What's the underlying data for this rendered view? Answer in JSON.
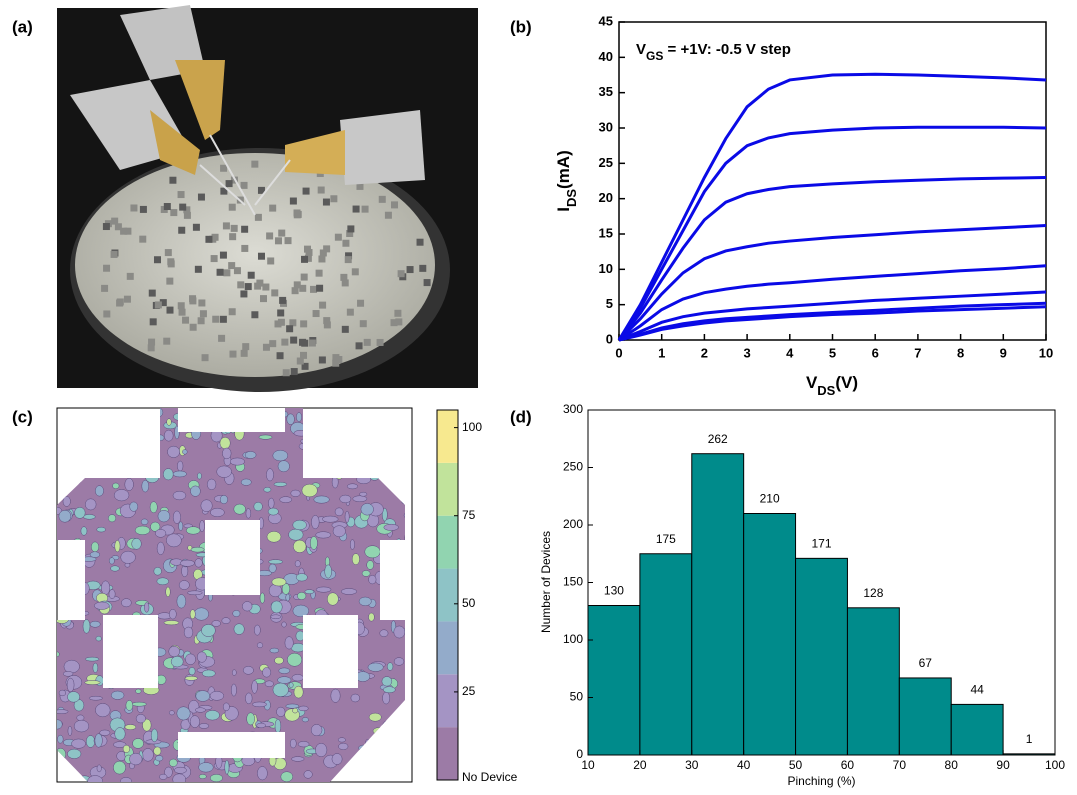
{
  "panel_labels": [
    "(a)",
    "(b)",
    "(c)",
    "(d)"
  ],
  "chart_data": [
    {
      "type": "line",
      "title": {
        "main": "V",
        "sub": "GS",
        "rest": " = +1V: -0.5 V step"
      },
      "x_label": {
        "main": "V",
        "sub": "DS",
        "rest": "(V)"
      },
      "y_label": {
        "main": "I",
        "sub": "DS",
        "rest": "(mA)"
      },
      "x": [
        0,
        0.5,
        1,
        1.5,
        2,
        2.5,
        3,
        3.5,
        4,
        5,
        6,
        7,
        8,
        9,
        10
      ],
      "series": [
        {
          "color": "#0a0ae6",
          "values": [
            0,
            5,
            11,
            17,
            23,
            28.5,
            33,
            35.5,
            36.8,
            37.5,
            37.6,
            37.5,
            37.3,
            37.1,
            36.8
          ]
        },
        {
          "color": "#0a0ae6",
          "values": [
            0,
            4.5,
            10,
            15.5,
            21,
            25,
            27.5,
            28.6,
            29.2,
            29.7,
            30,
            30.1,
            30.1,
            30.1,
            30
          ]
        },
        {
          "color": "#0a0ae6",
          "values": [
            0,
            3.8,
            8.5,
            13,
            17,
            19.5,
            20.7,
            21.3,
            21.7,
            22.1,
            22.4,
            22.6,
            22.8,
            22.9,
            23
          ]
        },
        {
          "color": "#0a0ae6",
          "values": [
            0,
            3,
            6.5,
            9.5,
            11.5,
            12.6,
            13.2,
            13.7,
            14,
            14.5,
            14.9,
            15.3,
            15.6,
            15.9,
            16.2
          ]
        },
        {
          "color": "#0a0ae6",
          "values": [
            0,
            2,
            4.3,
            5.8,
            6.7,
            7.2,
            7.6,
            7.9,
            8.1,
            8.6,
            9,
            9.4,
            9.8,
            10.1,
            10.5
          ]
        },
        {
          "color": "#0a0ae6",
          "values": [
            0,
            1.2,
            2.5,
            3.3,
            3.8,
            4.1,
            4.4,
            4.6,
            4.8,
            5.2,
            5.6,
            5.9,
            6.2,
            6.5,
            6.8
          ]
        },
        {
          "color": "#0a0ae6",
          "values": [
            0,
            0.8,
            1.7,
            2.3,
            2.7,
            3,
            3.2,
            3.4,
            3.6,
            3.9,
            4.2,
            4.5,
            4.8,
            5,
            5.2
          ]
        },
        {
          "color": "#0a0ae6",
          "values": [
            0,
            0.7,
            1.5,
            2,
            2.4,
            2.7,
            2.9,
            3.1,
            3.3,
            3.6,
            3.8,
            4.1,
            4.3,
            4.5,
            4.7
          ]
        }
      ],
      "xlim": [
        0,
        10
      ],
      "xticks": [
        0,
        1,
        2,
        3,
        4,
        5,
        6,
        7,
        8,
        9,
        10
      ],
      "ylim": [
        0,
        45
      ],
      "yticks": [
        0,
        5,
        10,
        15,
        20,
        25,
        30,
        35,
        40,
        45
      ]
    },
    {
      "type": "colorbar",
      "levels": [
        0,
        15,
        30,
        45,
        60,
        75,
        90,
        105
      ],
      "colors": [
        "#9c7ba6",
        "#a494c4",
        "#93abca",
        "#8ec3c6",
        "#91d4b0",
        "#c1e39b",
        "#f7e98f"
      ],
      "ylim": [
        0,
        105
      ],
      "yticks": [
        {
          "value": 0,
          "label": "No Device"
        },
        25,
        50,
        75,
        100
      ]
    },
    {
      "type": "histogram",
      "bins": [
        10,
        20,
        30,
        40,
        50,
        60,
        70,
        80,
        90,
        100
      ],
      "values": [
        130,
        175,
        262,
        210,
        171,
        128,
        67,
        44,
        1
      ],
      "color": "#008b8b",
      "x_label": "Pinching (%)",
      "y_label": "Number of Devices",
      "xlim": [
        10,
        100
      ],
      "xticks": [
        10,
        20,
        30,
        40,
        50,
        60,
        70,
        80,
        90,
        100
      ],
      "ylim": [
        0,
        300
      ],
      "yticks": [
        0,
        50,
        100,
        150,
        200,
        250,
        300
      ]
    }
  ]
}
